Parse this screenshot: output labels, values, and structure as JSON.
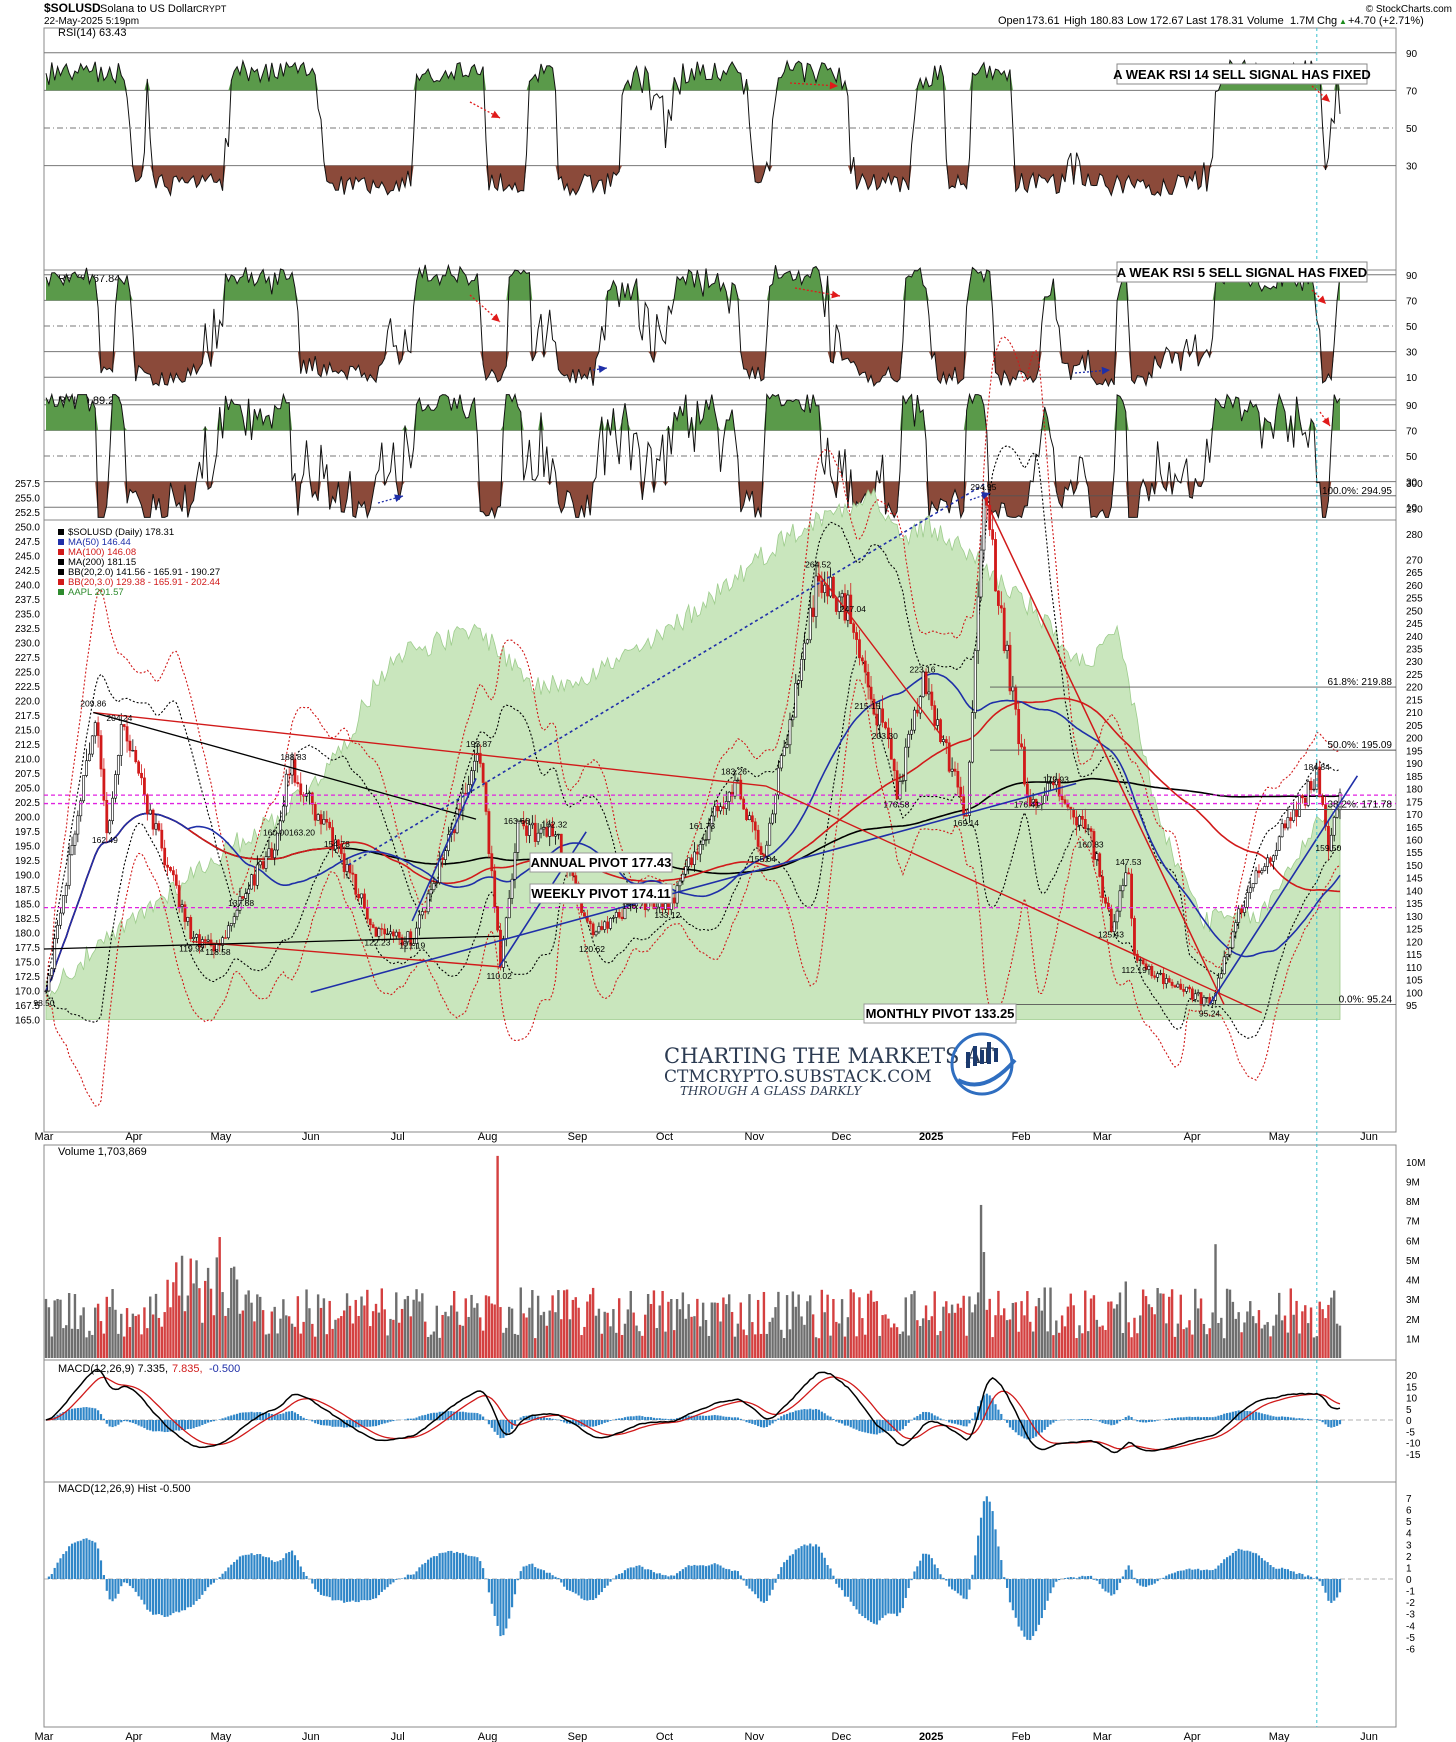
{
  "header": {
    "symbol": "$SOLUSD",
    "name": "Solana to US Dollar",
    "exchange": "CRYPT",
    "datetime": "22-May-2025 5:19pm",
    "copyright": "© StockCharts.com",
    "quote": {
      "open": "173.61",
      "high": "180.83",
      "low": "172.67",
      "last": "178.31",
      "volume": "1.7M",
      "chg": "+4.70 (+2.71%)"
    },
    "quote_labels": {
      "open": "Open",
      "high": "High",
      "low": "Low",
      "last": "Last",
      "volume": "Volume",
      "chg": "Chg"
    },
    "up_arrow": "▲"
  },
  "panels": {
    "rsi14": {
      "label": "RSI(14) 63.43",
      "ticks": [
        "90",
        "70",
        "50",
        "30"
      ],
      "callout": "A WEAK RSI 14 SELL SIGNAL HAS FIXED"
    },
    "rsi5": {
      "label": "RSI(5) 67.84",
      "ticks": [
        "90",
        "70",
        "50",
        "30",
        "10"
      ],
      "callout": "A WEAK RSI 5 SELL SIGNAL HAS FIXED"
    },
    "rsi2": {
      "label": "RSI(2) 89.28",
      "ticks": [
        "90",
        "70",
        "50",
        "30",
        "10"
      ]
    },
    "price": {
      "legend": [
        {
          "text": "$SOLUSD (Daily) 178.31",
          "color": "#000000"
        },
        {
          "text": "MA(50) 146.44",
          "color": "#1f2fa8"
        },
        {
          "text": "MA(100) 146.08",
          "color": "#d11a1a"
        },
        {
          "text": "MA(200) 181.15",
          "color": "#000000"
        },
        {
          "text": "BB(20,2.0) 141.56 - 165.91 - 190.27",
          "color": "#000000"
        },
        {
          "text": "BB(20,3.0) 129.38 - 165.91 - 202.44",
          "color": "#d11a1a"
        },
        {
          "text": "AAPL 201.57",
          "color": "#2e8b2e"
        }
      ],
      "left_ticks": [
        "257.5",
        "255.0",
        "252.5",
        "250.0",
        "247.5",
        "245.0",
        "242.5",
        "240.0",
        "237.5",
        "235.0",
        "232.5",
        "230.0",
        "227.5",
        "225.0",
        "222.5",
        "220.0",
        "217.5",
        "215.0",
        "212.5",
        "210.0",
        "207.5",
        "205.0",
        "202.5",
        "200.0",
        "197.5",
        "195.0",
        "192.5",
        "190.0",
        "187.5",
        "185.0",
        "182.5",
        "180.0",
        "177.5",
        "175.0",
        "172.5",
        "170.0",
        "167.5",
        "165.0"
      ],
      "right_ticks": [
        "300",
        "290",
        "280",
        "270",
        "265",
        "260",
        "255",
        "250",
        "245",
        "240",
        "235",
        "230",
        "225",
        "220",
        "215",
        "210",
        "205",
        "200",
        "195",
        "190",
        "185",
        "180",
        "175",
        "170",
        "165",
        "160",
        "155",
        "150",
        "145",
        "140",
        "135",
        "130",
        "125",
        "120",
        "115",
        "110",
        "105",
        "100",
        "95"
      ],
      "fib_labels": [
        "100.0%: 294.95",
        "61.8%: 219.88",
        "50.0%: 195.09",
        "38.2%: 171.78",
        "0.0%: 95.24"
      ],
      "pivots": {
        "annual": "ANNUAL PIVOT 177.43",
        "weekly": "WEEKLY PIVOT 174.11",
        "monthly": "MONTHLY PIVOT 133.25"
      },
      "point_labels": [
        "209.86",
        "204.24",
        "162.49",
        "119.92",
        "118.58",
        "160.00",
        "163.20",
        "137.88",
        "188.83",
        "154.78",
        "122.23",
        "121.19",
        "193.87",
        "163.66",
        "110.02",
        "162.32",
        "136.7",
        "120.62",
        "161.73",
        "133.12",
        "183.26",
        "155.04",
        "264.52",
        "247.04",
        "215.15",
        "203.30",
        "176.58",
        "223.16",
        "169.14",
        "294.95",
        "176.41",
        "179.93",
        "160.83",
        "125.43",
        "147.53",
        "112.19",
        "95.24",
        "184.84",
        "159.50",
        "98.50"
      ],
      "watermark": [
        "CHARTING THE MARKETS AT",
        "CTMCRYPTO.SUBSTACK.COM",
        "THROUGH A GLASS DARKLY"
      ]
    },
    "volume": {
      "label": "Volume 1,703,869",
      "ticks": [
        "10M",
        "9M",
        "8M",
        "7M",
        "6M",
        "5M",
        "4M",
        "3M",
        "2M",
        "1M"
      ]
    },
    "macd": {
      "label_main": "MACD(12,26,9) 7.335,",
      "label_signal": "7.835,",
      "label_hist": "-0.500",
      "ticks": [
        "20",
        "15",
        "10",
        "5",
        "0",
        "-5",
        "-10",
        "-15"
      ]
    },
    "hist": {
      "label": "MACD(12,26,9) Hist -0.500",
      "ticks": [
        "7",
        "6",
        "5",
        "4",
        "3",
        "2",
        "1",
        "0",
        "-1",
        "-2",
        "-3",
        "-4",
        "-5",
        "-6"
      ]
    }
  },
  "x_axis": [
    "Mar",
    "Apr",
    "May",
    "Jun",
    "Jul",
    "Aug",
    "Sep",
    "Oct",
    "Nov",
    "Dec",
    "2025",
    "Feb",
    "Mar",
    "Apr",
    "May",
    "Jun"
  ],
  "colors": {
    "green_fill": "#5a9a4a",
    "red_fill": "#8b4a3a",
    "aapl_area": "#c9e6bd",
    "up_candle": "#000000",
    "down_candle": "#d11a1a",
    "ma50": "#1f2fa8",
    "ma100": "#d11a1a",
    "blue_hist": "#2f86c8",
    "pivot_magenta": "#e021e0"
  },
  "chart_data": {
    "type": "line",
    "title": "$SOLUSD (Daily) 178.31",
    "x_range": [
      "2024-03-01",
      "2025-05-22"
    ],
    "series": [
      {
        "name": "$SOLUSD",
        "anchors": [
          [
            "2024-03-01",
            98.5
          ],
          [
            "2024-03-08",
            145
          ],
          [
            "2024-03-18",
            209.86
          ],
          [
            "2024-03-22",
            162.49
          ],
          [
            "2024-03-27",
            204.24
          ],
          [
            "2024-04-12",
            150
          ],
          [
            "2024-04-21",
            119.92
          ],
          [
            "2024-04-30",
            118.58
          ],
          [
            "2024-05-08",
            137.88
          ],
          [
            "2024-05-20",
            160
          ],
          [
            "2024-05-24",
            188.83
          ],
          [
            "2024-06-10",
            154.78
          ],
          [
            "2024-06-24",
            122.23
          ],
          [
            "2024-07-06",
            121.19
          ],
          [
            "2024-07-29",
            193.87
          ],
          [
            "2024-08-05",
            110.02
          ],
          [
            "2024-08-11",
            163.66
          ],
          [
            "2024-08-24",
            162.32
          ],
          [
            "2024-09-06",
            120.62
          ],
          [
            "2024-09-20",
            136.7
          ],
          [
            "2024-10-02",
            133.12
          ],
          [
            "2024-10-14",
            161.73
          ],
          [
            "2024-10-25",
            183.26
          ],
          [
            "2024-11-04",
            155.04
          ],
          [
            "2024-11-23",
            264.52
          ],
          [
            "2024-12-05",
            247.04
          ],
          [
            "2024-12-10",
            215.15
          ],
          [
            "2024-12-16",
            203.3
          ],
          [
            "2024-12-20",
            176.58
          ],
          [
            "2024-12-29",
            223.16
          ],
          [
            "2025-01-13",
            169.14
          ],
          [
            "2025-01-19",
            294.95
          ],
          [
            "2025-02-03",
            176.41
          ],
          [
            "2025-02-13",
            179.93
          ],
          [
            "2025-02-25",
            160.83
          ],
          [
            "2025-03-04",
            125.43
          ],
          [
            "2025-03-10",
            147.53
          ],
          [
            "2025-03-12",
            112.19
          ],
          [
            "2025-04-07",
            95.24
          ],
          [
            "2025-04-20",
            140
          ],
          [
            "2025-05-14",
            184.84
          ],
          [
            "2025-05-18",
            159.5
          ],
          [
            "2025-05-22",
            178.31
          ]
        ]
      },
      {
        "name": "MA(50)",
        "last": 146.44
      },
      {
        "name": "MA(100)",
        "last": 146.08
      },
      {
        "name": "MA(200)",
        "last": 181.15
      },
      {
        "name": "AAPL",
        "last": 201.57
      }
    ],
    "pivots": {
      "annual": 177.43,
      "weekly": 174.11,
      "monthly": 133.25
    },
    "fib_levels": {
      "100.0%": 294.95,
      "61.8%": 219.88,
      "50.0%": 195.09,
      "38.2%": 171.78,
      "0.0%": 95.24
    },
    "y_range_right": [
      95,
      300
    ],
    "y_range_left": [
      165,
      257.5
    ],
    "indicators": {
      "RSI(14)": 63.43,
      "RSI(5)": 67.84,
      "RSI(2)": 89.28,
      "MACD": 7.335,
      "Signal": 7.835,
      "Hist": -0.5,
      "Volume": 1703869
    }
  }
}
